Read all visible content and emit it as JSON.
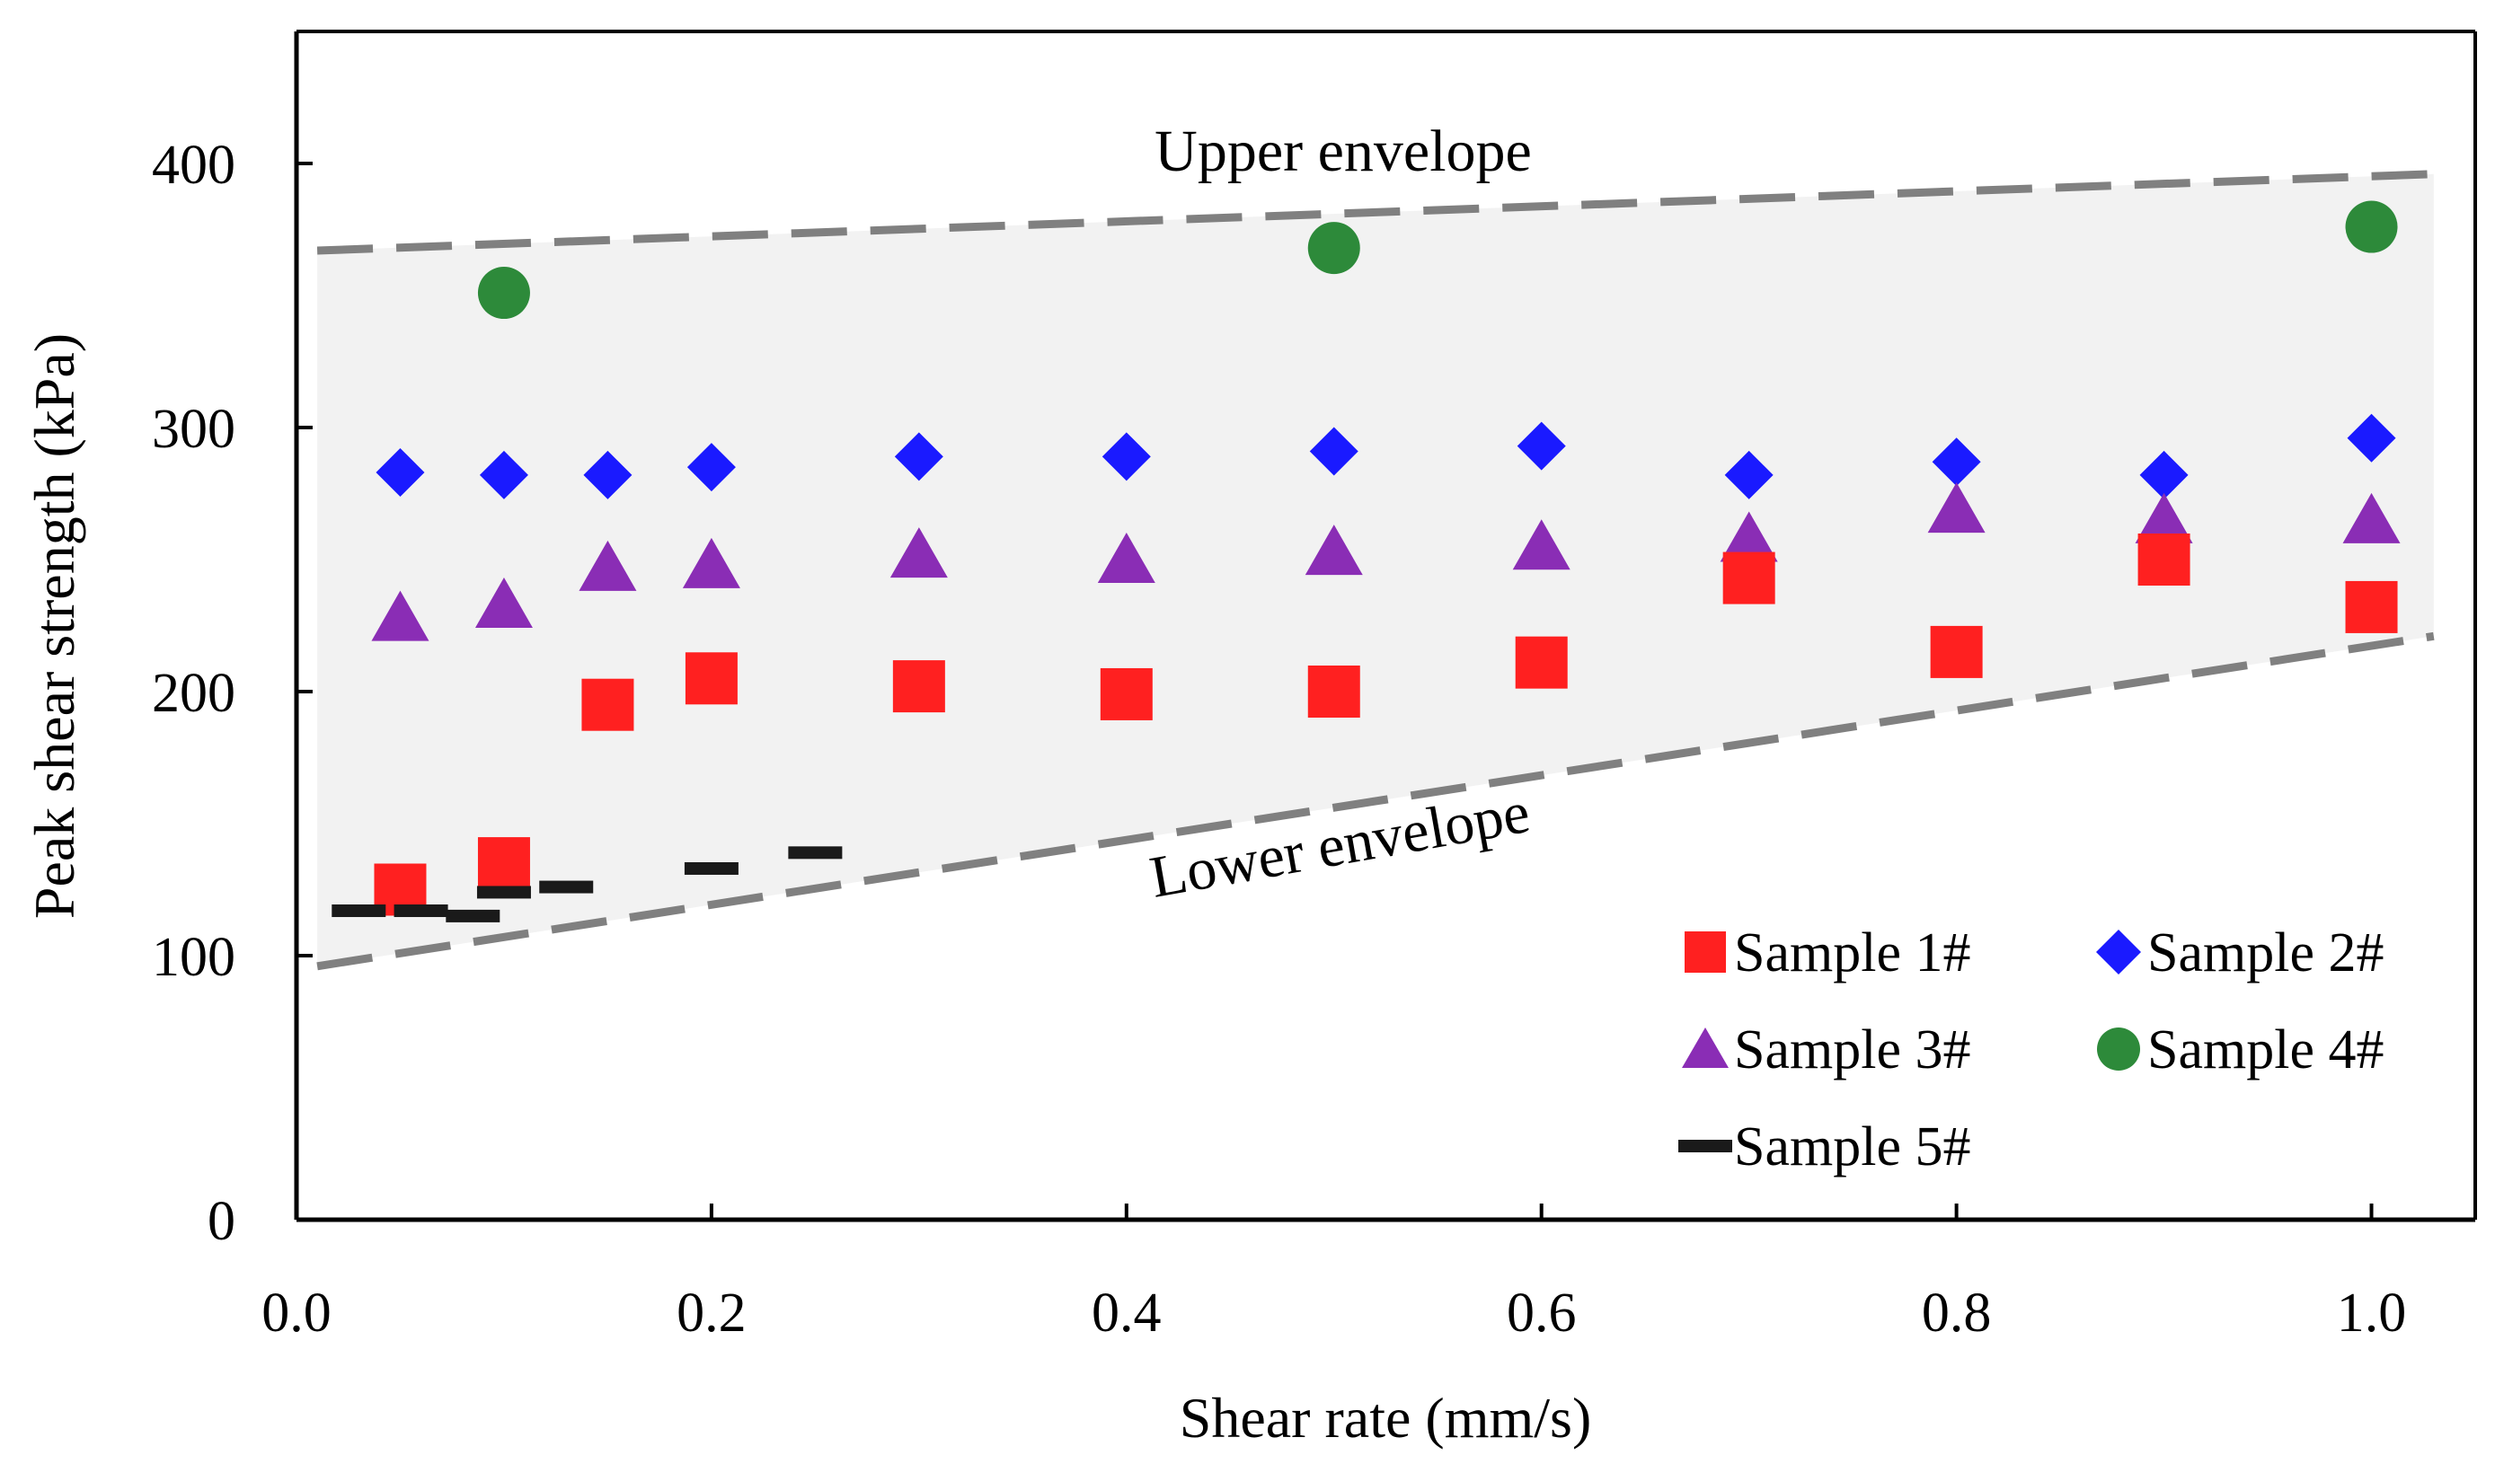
{
  "chart_data": {
    "type": "scatter",
    "title": "",
    "xlabel": "Shear rate (mm/s)",
    "ylabel": "Peak shear strength (kPa)",
    "xlim": [
      0.0,
      1.05
    ],
    "ylim": [
      0,
      450
    ],
    "xticks": [
      0.0,
      0.2,
      0.4,
      0.6,
      0.8,
      1.0
    ],
    "xtick_labels": [
      "0.0",
      "0.2",
      "0.4",
      "0.6",
      "0.8",
      "1.0"
    ],
    "yticks": [
      0,
      100,
      200,
      300,
      400
    ],
    "ytick_labels": [
      "0",
      "100",
      "200",
      "300",
      "400"
    ],
    "grid": false,
    "legend_position": "bottom-right",
    "series": [
      {
        "name": "Sample 1#",
        "marker": "square",
        "color": "#ff2020",
        "x": [
          0.05,
          0.1,
          0.15,
          0.2,
          0.3,
          0.4,
          0.5,
          0.6,
          0.7,
          0.8,
          0.9,
          1.0
        ],
        "y": [
          125,
          135,
          195,
          205,
          202,
          199,
          200,
          211,
          243,
          215,
          250,
          232
        ]
      },
      {
        "name": "Sample 2#",
        "marker": "diamond",
        "color": "#1a1aff",
        "x": [
          0.05,
          0.1,
          0.15,
          0.2,
          0.3,
          0.4,
          0.5,
          0.6,
          0.7,
          0.8,
          0.9,
          1.0
        ],
        "y": [
          283,
          282,
          282,
          285,
          289,
          289,
          291,
          293,
          282,
          287,
          282,
          296
        ]
      },
      {
        "name": "Sample 3#",
        "marker": "triangle",
        "color": "#8a2db5",
        "x": [
          0.05,
          0.1,
          0.15,
          0.2,
          0.3,
          0.4,
          0.5,
          0.6,
          0.7,
          0.8,
          0.9,
          1.0
        ],
        "y": [
          228,
          233,
          247,
          248,
          252,
          250,
          253,
          255,
          258,
          269,
          265,
          265
        ]
      },
      {
        "name": "Sample 4#",
        "marker": "circle",
        "color": "#2d8a3a",
        "x": [
          0.1,
          0.5,
          1.0
        ],
        "y": [
          351,
          368,
          376
        ]
      },
      {
        "name": "Sample 5#",
        "marker": "dash",
        "color": "#1a1a1a",
        "x": [
          0.03,
          0.06,
          0.085,
          0.1,
          0.13,
          0.2,
          0.25
        ],
        "y": [
          117,
          117,
          115,
          124,
          126,
          133,
          139
        ]
      }
    ],
    "envelopes": [
      {
        "name": "Upper envelope",
        "x": [
          0.01,
          1.03
        ],
        "y": [
          367,
          396
        ]
      },
      {
        "name": "Lower envelope",
        "x": [
          0.01,
          1.03
        ],
        "y": [
          96,
          221
        ]
      }
    ],
    "annotations": [
      "Upper envelope",
      "Lower envelope"
    ],
    "colors": {
      "envelope_line": "#808080",
      "band_fill": "#f2f2f2",
      "axis": "#000000"
    }
  }
}
